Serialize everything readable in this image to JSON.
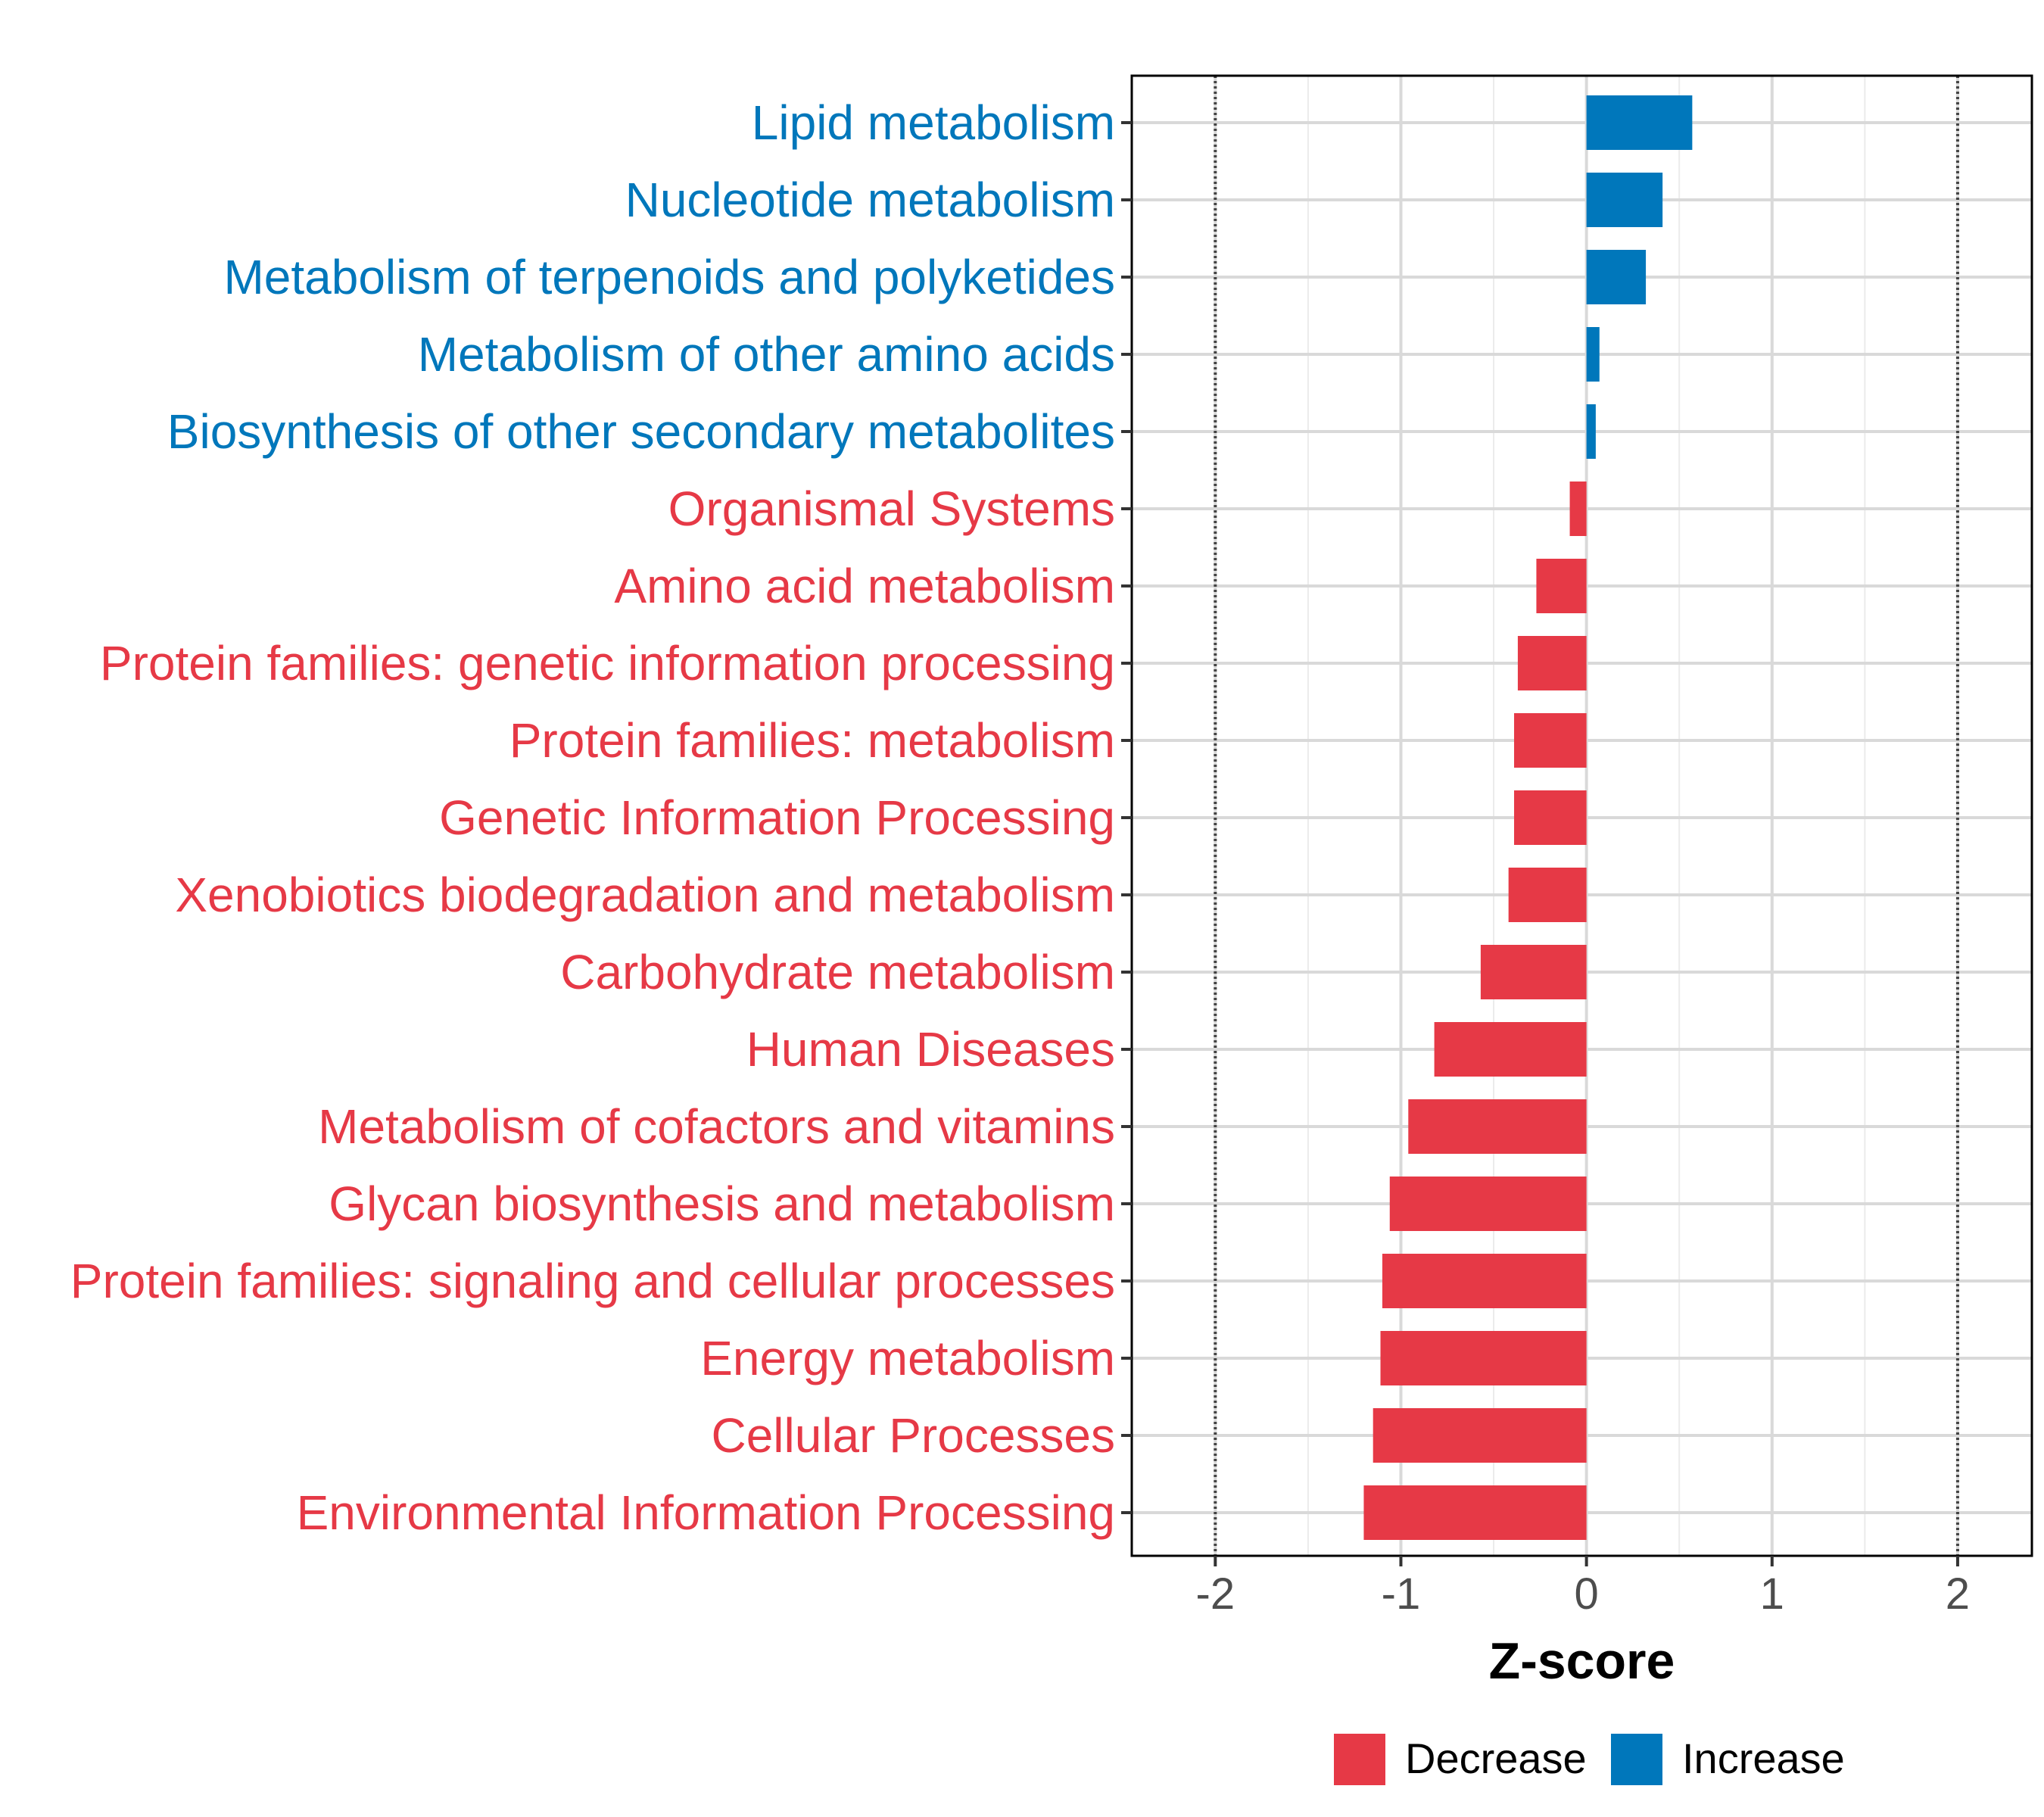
{
  "chart_data": {
    "type": "bar",
    "orientation": "horizontal",
    "title": "",
    "xlabel": "Z-score",
    "ylabel": "",
    "xlim": [
      -2.45,
      2.4
    ],
    "xticks": [
      -2,
      -1,
      0,
      1,
      2
    ],
    "reference_lines": [
      -2,
      2
    ],
    "grid": true,
    "legend_position": "bottom",
    "colors": {
      "Decrease": "#E63946",
      "Increase": "#0077BB"
    },
    "legend": [
      {
        "label": "Decrease",
        "group": "Decrease"
      },
      {
        "label": "Increase",
        "group": "Increase"
      }
    ],
    "categories": [
      "Lipid metabolism",
      "Nucleotide metabolism",
      "Metabolism of terpenoids and polyketides",
      "Metabolism of other amino acids",
      "Biosynthesis of other secondary metabolites",
      "Organismal Systems",
      "Amino acid metabolism",
      "Protein families: genetic information processing",
      "Protein families: metabolism",
      "Genetic Information Processing",
      "Xenobiotics biodegradation and metabolism",
      "Carbohydrate metabolism",
      "Human Diseases",
      "Metabolism of cofactors and vitamins",
      "Glycan biosynthesis and metabolism",
      "Protein families: signaling and cellular processes",
      "Energy metabolism",
      "Cellular Processes",
      "Environmental Information Processing"
    ],
    "values": [
      0.57,
      0.41,
      0.32,
      0.07,
      0.05,
      -0.09,
      -0.27,
      -0.37,
      -0.39,
      -0.39,
      -0.42,
      -0.57,
      -0.82,
      -0.96,
      -1.06,
      -1.1,
      -1.11,
      -1.15,
      -1.2
    ],
    "groups": [
      "Increase",
      "Increase",
      "Increase",
      "Increase",
      "Increase",
      "Decrease",
      "Decrease",
      "Decrease",
      "Decrease",
      "Decrease",
      "Decrease",
      "Decrease",
      "Decrease",
      "Decrease",
      "Decrease",
      "Decrease",
      "Decrease",
      "Decrease",
      "Decrease"
    ]
  }
}
